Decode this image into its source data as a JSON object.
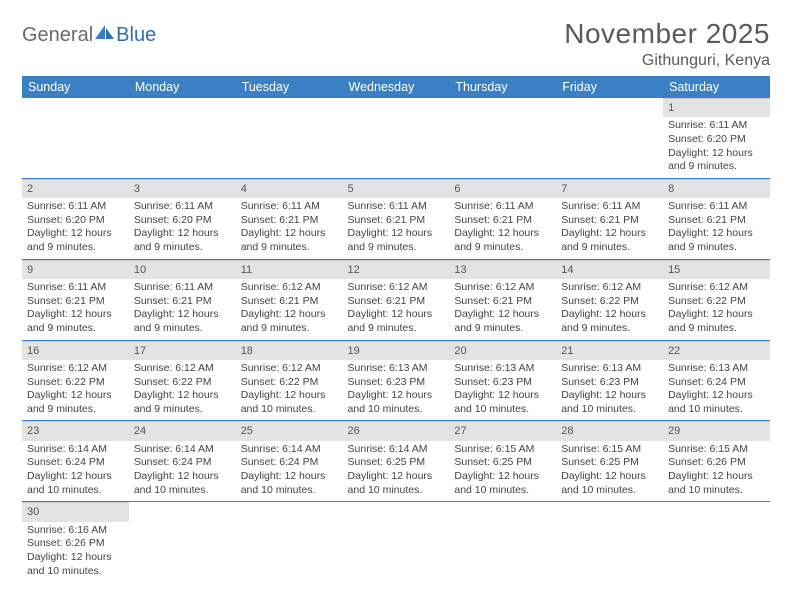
{
  "brand": {
    "part1": "General",
    "part2": "Blue"
  },
  "title": "November 2025",
  "location": "Githunguri, Kenya",
  "colors": {
    "header_bg": "#3b7fc4",
    "header_text": "#ffffff",
    "daynum_bg": "#e3e3e3",
    "rule": "#3b7fc4",
    "text": "#444444",
    "logo_gray": "#6a6a6a",
    "logo_blue": "#2f6fb0"
  },
  "weekdays": [
    "Sunday",
    "Monday",
    "Tuesday",
    "Wednesday",
    "Thursday",
    "Friday",
    "Saturday"
  ],
  "weeks": [
    [
      null,
      null,
      null,
      null,
      null,
      null,
      {
        "n": "1",
        "sr": "6:11 AM",
        "ss": "6:20 PM",
        "dl": "12 hours and 9 minutes."
      }
    ],
    [
      {
        "n": "2",
        "sr": "6:11 AM",
        "ss": "6:20 PM",
        "dl": "12 hours and 9 minutes."
      },
      {
        "n": "3",
        "sr": "6:11 AM",
        "ss": "6:20 PM",
        "dl": "12 hours and 9 minutes."
      },
      {
        "n": "4",
        "sr": "6:11 AM",
        "ss": "6:21 PM",
        "dl": "12 hours and 9 minutes."
      },
      {
        "n": "5",
        "sr": "6:11 AM",
        "ss": "6:21 PM",
        "dl": "12 hours and 9 minutes."
      },
      {
        "n": "6",
        "sr": "6:11 AM",
        "ss": "6:21 PM",
        "dl": "12 hours and 9 minutes."
      },
      {
        "n": "7",
        "sr": "6:11 AM",
        "ss": "6:21 PM",
        "dl": "12 hours and 9 minutes."
      },
      {
        "n": "8",
        "sr": "6:11 AM",
        "ss": "6:21 PM",
        "dl": "12 hours and 9 minutes."
      }
    ],
    [
      {
        "n": "9",
        "sr": "6:11 AM",
        "ss": "6:21 PM",
        "dl": "12 hours and 9 minutes."
      },
      {
        "n": "10",
        "sr": "6:11 AM",
        "ss": "6:21 PM",
        "dl": "12 hours and 9 minutes."
      },
      {
        "n": "11",
        "sr": "6:12 AM",
        "ss": "6:21 PM",
        "dl": "12 hours and 9 minutes."
      },
      {
        "n": "12",
        "sr": "6:12 AM",
        "ss": "6:21 PM",
        "dl": "12 hours and 9 minutes."
      },
      {
        "n": "13",
        "sr": "6:12 AM",
        "ss": "6:21 PM",
        "dl": "12 hours and 9 minutes."
      },
      {
        "n": "14",
        "sr": "6:12 AM",
        "ss": "6:22 PM",
        "dl": "12 hours and 9 minutes."
      },
      {
        "n": "15",
        "sr": "6:12 AM",
        "ss": "6:22 PM",
        "dl": "12 hours and 9 minutes."
      }
    ],
    [
      {
        "n": "16",
        "sr": "6:12 AM",
        "ss": "6:22 PM",
        "dl": "12 hours and 9 minutes."
      },
      {
        "n": "17",
        "sr": "6:12 AM",
        "ss": "6:22 PM",
        "dl": "12 hours and 9 minutes."
      },
      {
        "n": "18",
        "sr": "6:12 AM",
        "ss": "6:22 PM",
        "dl": "12 hours and 10 minutes."
      },
      {
        "n": "19",
        "sr": "6:13 AM",
        "ss": "6:23 PM",
        "dl": "12 hours and 10 minutes."
      },
      {
        "n": "20",
        "sr": "6:13 AM",
        "ss": "6:23 PM",
        "dl": "12 hours and 10 minutes."
      },
      {
        "n": "21",
        "sr": "6:13 AM",
        "ss": "6:23 PM",
        "dl": "12 hours and 10 minutes."
      },
      {
        "n": "22",
        "sr": "6:13 AM",
        "ss": "6:24 PM",
        "dl": "12 hours and 10 minutes."
      }
    ],
    [
      {
        "n": "23",
        "sr": "6:14 AM",
        "ss": "6:24 PM",
        "dl": "12 hours and 10 minutes."
      },
      {
        "n": "24",
        "sr": "6:14 AM",
        "ss": "6:24 PM",
        "dl": "12 hours and 10 minutes."
      },
      {
        "n": "25",
        "sr": "6:14 AM",
        "ss": "6:24 PM",
        "dl": "12 hours and 10 minutes."
      },
      {
        "n": "26",
        "sr": "6:14 AM",
        "ss": "6:25 PM",
        "dl": "12 hours and 10 minutes."
      },
      {
        "n": "27",
        "sr": "6:15 AM",
        "ss": "6:25 PM",
        "dl": "12 hours and 10 minutes."
      },
      {
        "n": "28",
        "sr": "6:15 AM",
        "ss": "6:25 PM",
        "dl": "12 hours and 10 minutes."
      },
      {
        "n": "29",
        "sr": "6:15 AM",
        "ss": "6:26 PM",
        "dl": "12 hours and 10 minutes."
      }
    ],
    [
      {
        "n": "30",
        "sr": "6:16 AM",
        "ss": "6:26 PM",
        "dl": "12 hours and 10 minutes."
      },
      null,
      null,
      null,
      null,
      null,
      null
    ]
  ],
  "labels": {
    "sunrise": "Sunrise:",
    "sunset": "Sunset:",
    "daylight": "Daylight:"
  }
}
